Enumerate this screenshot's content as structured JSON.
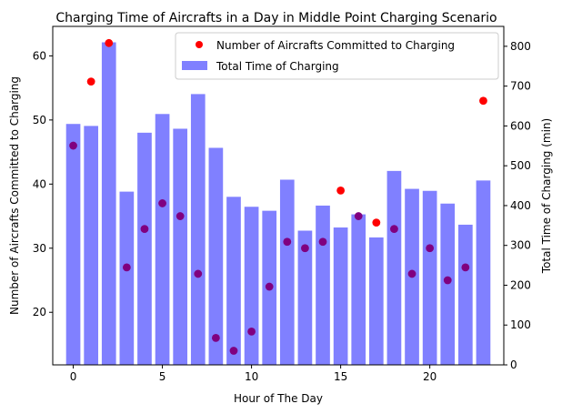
{
  "chart_data": {
    "type": "bar",
    "title": "Charging Time of Aircrafts in a Day in Middle Point Charging Scenario",
    "xlabel": "Hour of The Day",
    "ylabel_left": "Number of Aircrafts Committed to Charging",
    "ylabel_right": "Total Time of Charging (min)",
    "x": [
      0,
      1,
      2,
      3,
      4,
      5,
      6,
      7,
      8,
      9,
      10,
      11,
      12,
      13,
      14,
      15,
      16,
      17,
      18,
      19,
      20,
      21,
      22,
      23
    ],
    "xlim": [
      -1.15,
      24.15
    ],
    "xticks": [
      0,
      5,
      10,
      15,
      20
    ],
    "ylim_left": [
      11.8,
      64.6
    ],
    "yticks_left": [
      20,
      30,
      40,
      50,
      60
    ],
    "ylim_right": [
      0,
      850
    ],
    "yticks_right": [
      0,
      100,
      200,
      300,
      400,
      500,
      600,
      700,
      800
    ],
    "series": [
      {
        "name": "Total Time of Charging",
        "kind": "bar",
        "axis": "right",
        "color": "#8080ff",
        "values": [
          605,
          600,
          810,
          435,
          583,
          630,
          593,
          680,
          545,
          422,
          397,
          387,
          465,
          337,
          400,
          345,
          378,
          320,
          487,
          442,
          437,
          405,
          352,
          463
        ]
      },
      {
        "name": "Number of Aircrafts Committed to Charging",
        "kind": "scatter",
        "axis": "left",
        "color": "#ff0000",
        "overlap_color": "#800080",
        "values": [
          46,
          56,
          62,
          27,
          33,
          37,
          35,
          26,
          16,
          14,
          17,
          24,
          31,
          30,
          31,
          39,
          35,
          34,
          33,
          26,
          30,
          25,
          27,
          53
        ]
      }
    ],
    "legend": {
      "position": "upper right",
      "entries": [
        "Number of Aircrafts Committed to Charging",
        "Total Time of Charging"
      ]
    }
  }
}
